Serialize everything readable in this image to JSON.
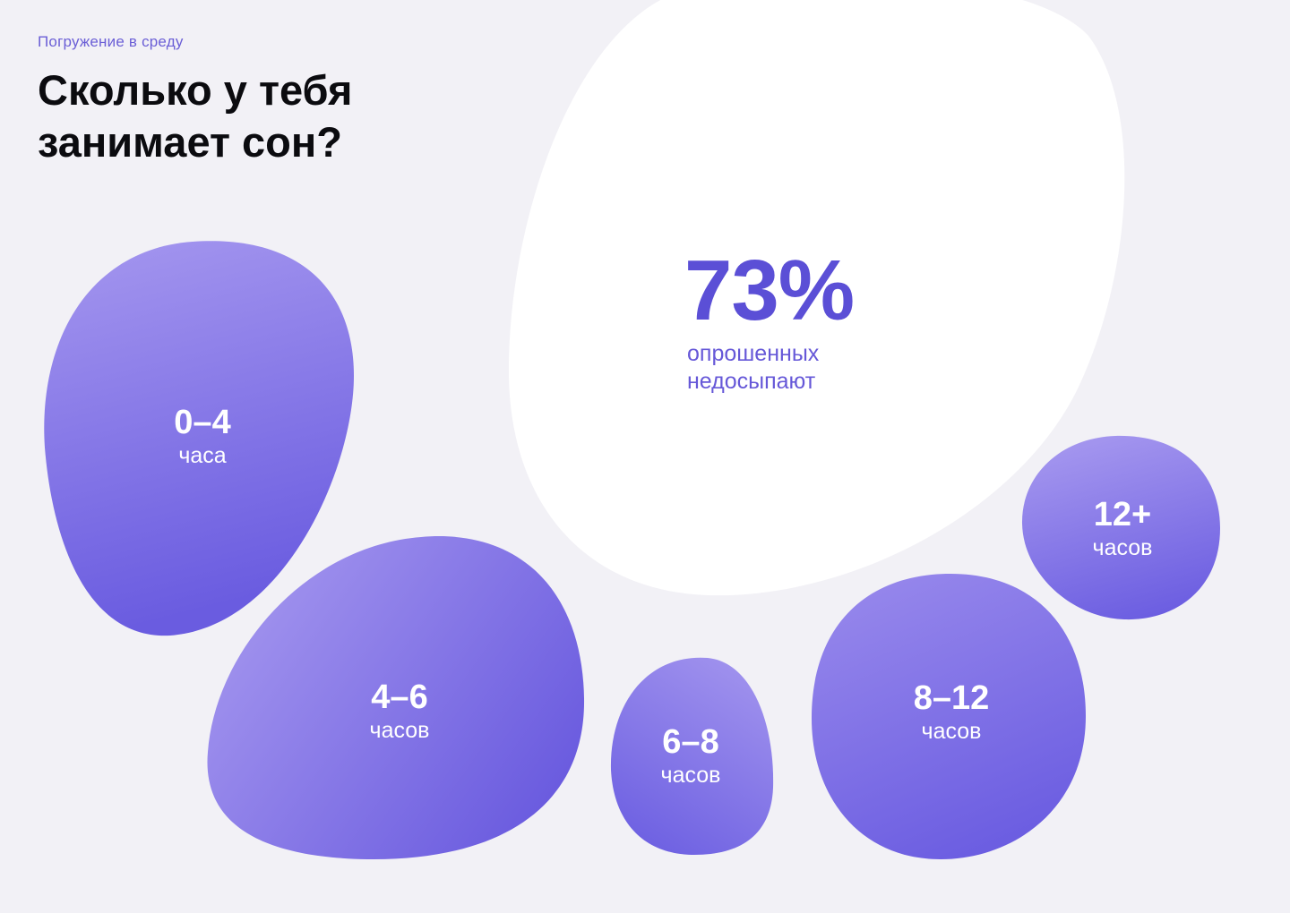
{
  "header": {
    "eyebrow": "Погружение в среду",
    "title": "Сколько у тебя занимает сон?"
  },
  "highlight": {
    "value": "73%",
    "caption": "опрошенных недосыпают"
  },
  "bubbles": [
    {
      "range": "0–4",
      "unit": "часа"
    },
    {
      "range": "4–6",
      "unit": "часов"
    },
    {
      "range": "6–8",
      "unit": "часов"
    },
    {
      "range": "8–12",
      "unit": "часов"
    },
    {
      "range": "12+",
      "unit": "часов"
    }
  ],
  "colors": {
    "background": "#f2f1f6",
    "accent": "#5b4fd6",
    "bubble_light": "#a597ef",
    "bubble_dark": "#6a5ce0",
    "highlight_bg": "#ffffff"
  }
}
